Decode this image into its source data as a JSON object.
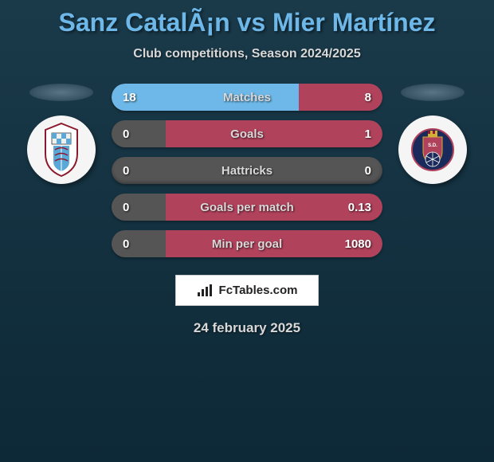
{
  "title": "Sanz CatalÃ¡n vs Mier Martínez",
  "subtitle": "Club competitions, Season 2024/2025",
  "date": "24 february 2025",
  "attribution": "FcTables.com",
  "colors": {
    "left_fill": "#6db8e8",
    "right_fill": "#b0425c",
    "neutral_fill": "#555555",
    "text": "#d8d8d8",
    "title": "#6db8e8"
  },
  "team_left": {
    "name": "Celta",
    "crest_bg": "#f5f5f5",
    "crest_primary": "#8b1a2e",
    "crest_secondary": "#5aa8d8"
  },
  "team_right": {
    "name": "SD Huesca",
    "crest_bg": "#f5f5f5",
    "crest_primary": "#1a2a5a",
    "crest_secondary": "#b0425c"
  },
  "stats": [
    {
      "label": "Matches",
      "left_val": "18",
      "right_val": "8",
      "left_pct": 69,
      "right_pct": 31,
      "left_color": "#6db8e8",
      "right_color": "#b0425c"
    },
    {
      "label": "Goals",
      "left_val": "0",
      "right_val": "1",
      "left_pct": 20,
      "right_pct": 80,
      "left_color": "#555555",
      "right_color": "#b0425c"
    },
    {
      "label": "Hattricks",
      "left_val": "0",
      "right_val": "0",
      "left_pct": 0,
      "right_pct": 0,
      "left_color": "#555555",
      "right_color": "#555555"
    },
    {
      "label": "Goals per match",
      "left_val": "0",
      "right_val": "0.13",
      "left_pct": 20,
      "right_pct": 80,
      "left_color": "#555555",
      "right_color": "#b0425c"
    },
    {
      "label": "Min per goal",
      "left_val": "0",
      "right_val": "1080",
      "left_pct": 20,
      "right_pct": 80,
      "left_color": "#555555",
      "right_color": "#b0425c"
    }
  ]
}
